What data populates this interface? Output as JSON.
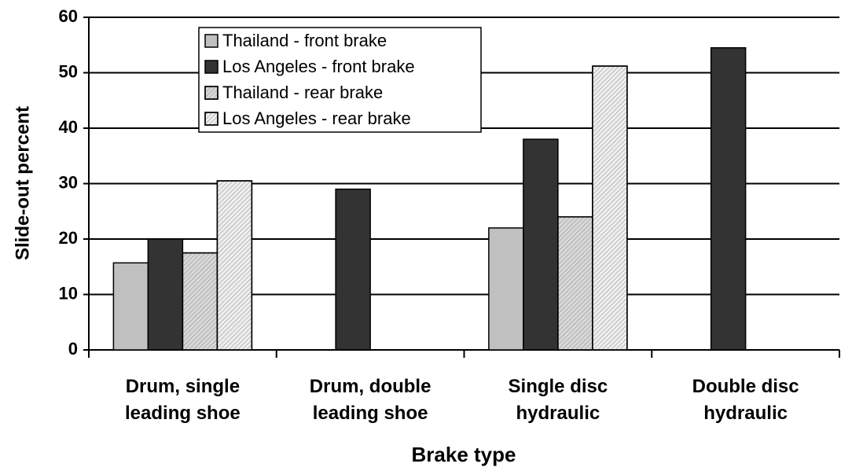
{
  "chart_data": {
    "type": "bar",
    "x_label": "Brake type",
    "y_label": "Slide-out percent",
    "categories": [
      "Drum, single leading shoe",
      "Drum, double leading shoe",
      "Single disc hydraulic",
      "Double disc hydraulic"
    ],
    "series": [
      {
        "name": "Thailand - front brake",
        "color": "#c0c0c0",
        "pattern": "solid",
        "values": [
          15.7,
          null,
          22,
          null
        ]
      },
      {
        "name": "Los Angeles - front brake",
        "color": "#333333",
        "pattern": "solid",
        "values": [
          20,
          29,
          38,
          54.5
        ]
      },
      {
        "name": "Thailand - rear brake",
        "color": "#d8d8d8",
        "pattern": "hatch",
        "values": [
          17.5,
          null,
          24,
          null
        ]
      },
      {
        "name": "Los Angeles - rear brake",
        "color": "#eeeeee",
        "pattern": "hatch",
        "values": [
          30.5,
          null,
          51.2,
          null
        ]
      }
    ],
    "ylim": [
      0,
      60
    ],
    "yticks": [
      0,
      10,
      20,
      30,
      40,
      50,
      60
    ],
    "grid": true,
    "legend": "upper left"
  }
}
